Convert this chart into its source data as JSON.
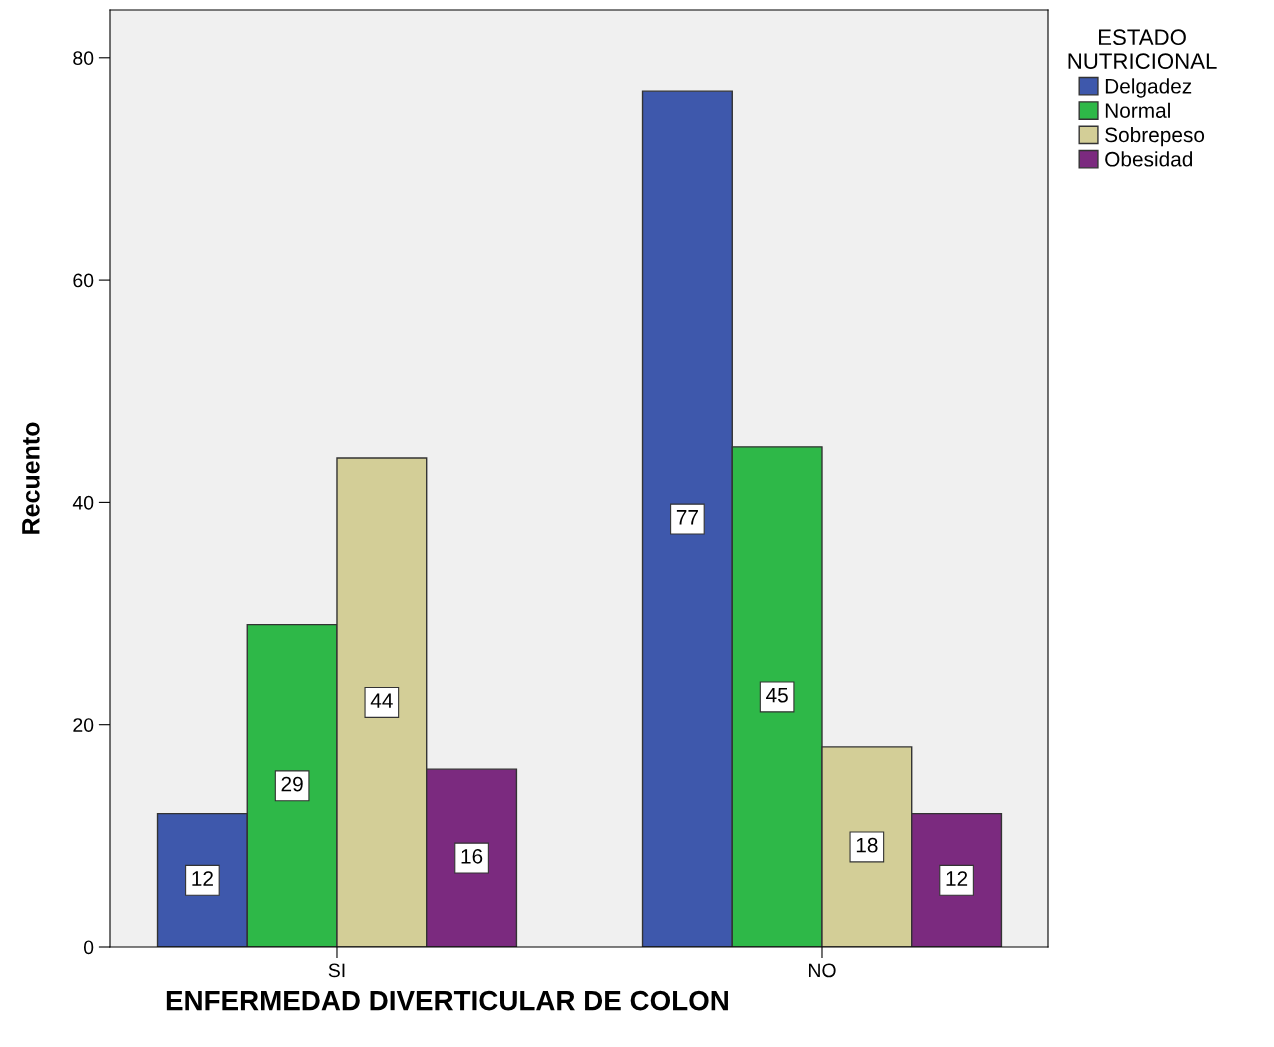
{
  "chart_data": {
    "type": "bar",
    "xlabel": "ENFERMEDAD DIVERTICULAR DE COLON",
    "ylabel": "Recuento",
    "legend_title": "ESTADO\nNUTRICIONAL",
    "categories": [
      "SI",
      "NO"
    ],
    "series": [
      {
        "name": "Delgadez",
        "color": "#3e58ac",
        "values": [
          12,
          77
        ]
      },
      {
        "name": "Normal",
        "color": "#2eb848",
        "values": [
          29,
          45
        ]
      },
      {
        "name": "Sobrepeso",
        "color": "#d3ce97",
        "values": [
          44,
          18
        ]
      },
      {
        "name": "Obesidad",
        "color": "#7b2a7f",
        "values": [
          16,
          12
        ]
      }
    ],
    "ylim": [
      0,
      84.3
    ],
    "yticks": [
      0,
      20,
      40,
      60,
      80
    ],
    "grid": false,
    "legend": "top right",
    "data_labels": true
  }
}
